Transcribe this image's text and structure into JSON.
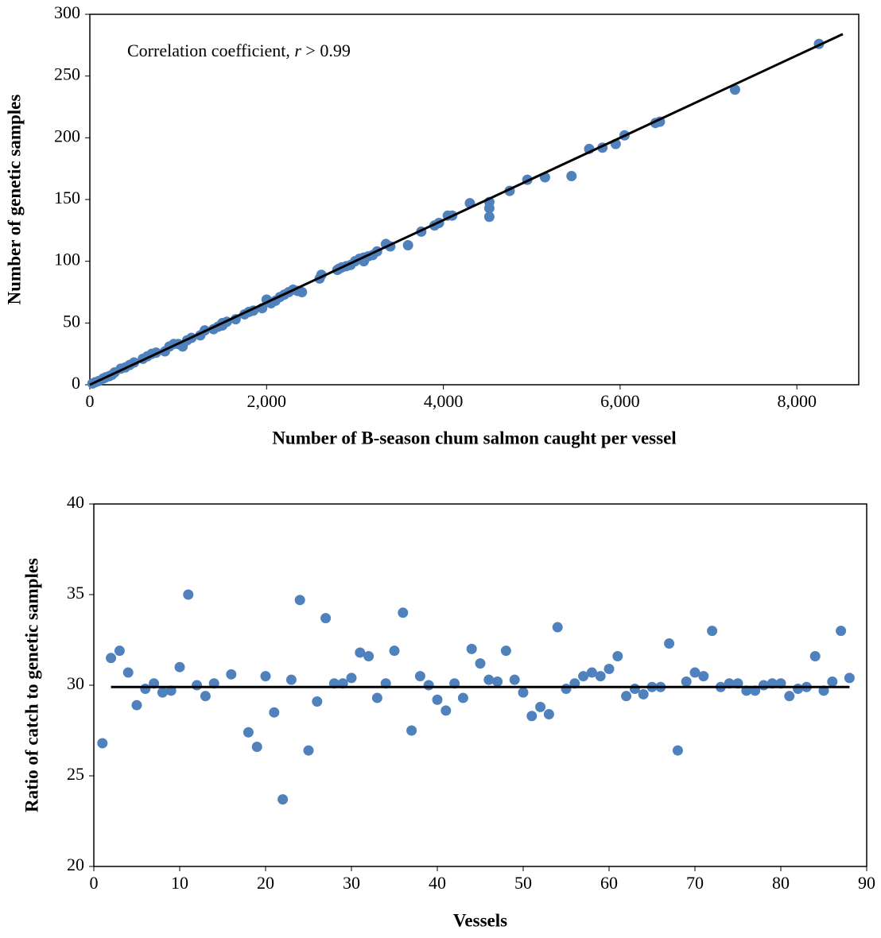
{
  "chart_data": [
    {
      "type": "scatter",
      "annotation": [
        "Correlation coefficient, ",
        "r",
        " > 0.99"
      ],
      "x_label": "Number of B-season chum salmon caught per vessel",
      "y_label": "Number of genetic samples",
      "xlim": [
        0,
        8700
      ],
      "ylim": [
        0,
        300
      ],
      "xticks": [
        0,
        {
          "value": 2000,
          "label": "2,000"
        },
        {
          "value": 4000,
          "label": "4,000"
        },
        {
          "value": 6000,
          "label": "6,000"
        },
        {
          "value": 8000,
          "label": "8,000"
        }
      ],
      "yticks": [
        0,
        50,
        100,
        150,
        200,
        250,
        300
      ],
      "color": "#4f81bd",
      "x": [
        30,
        60,
        100,
        150,
        180,
        220,
        250,
        280,
        350,
        400,
        450,
        500,
        600,
        650,
        700,
        750,
        850,
        900,
        950,
        1050,
        1100,
        1150,
        1250,
        1400,
        1450,
        1500,
        1550,
        1650,
        1750,
        1800,
        1850,
        1950,
        2000,
        2050,
        2100,
        2150,
        2200,
        2250,
        2300,
        2350,
        2400,
        2600,
        2620,
        2800,
        2850,
        2900,
        2950,
        3000,
        3050,
        3100,
        3150,
        3200,
        3250,
        3350,
        3400,
        3600,
        3750,
        3900,
        3950,
        4050,
        4100,
        4300,
        4520,
        4520,
        4520,
        4750,
        4950,
        5150,
        5450,
        5650,
        5800,
        5950,
        6050,
        6400,
        6450,
        7300,
        8250,
        3100,
        2820,
        1000,
        1300,
        1500
      ],
      "y": [
        1,
        2,
        3,
        5,
        6,
        7,
        8,
        10,
        13,
        14,
        16,
        18,
        21,
        23,
        25,
        26,
        27,
        31,
        33,
        31,
        36,
        38,
        40,
        45,
        47,
        50,
        51,
        53,
        57,
        59,
        60,
        62,
        69,
        66,
        68,
        71,
        73,
        75,
        77,
        76,
        75,
        86,
        89,
        93,
        95,
        96,
        97,
        100,
        102,
        103,
        104,
        105,
        108,
        114,
        112,
        113,
        124,
        129,
        131,
        137,
        137,
        147,
        148,
        143,
        136,
        157,
        166,
        168,
        169,
        191,
        192,
        195,
        202,
        212,
        213,
        239,
        276,
        100,
        94,
        33,
        44,
        48
      ],
      "line": {
        "x": [
          0,
          8520
        ],
        "y": [
          0,
          284
        ],
        "color": "#000000"
      }
    },
    {
      "type": "scatter",
      "x_label": "Vessels",
      "y_label": "Ratio of catch to genetic samples",
      "xlim": [
        0,
        90
      ],
      "ylim": [
        20,
        40
      ],
      "xticks": [
        0,
        10,
        20,
        30,
        40,
        50,
        60,
        70,
        80,
        90
      ],
      "yticks": [
        20,
        25,
        30,
        35,
        40
      ],
      "color": "#4f81bd",
      "x": [
        1,
        2,
        3,
        4,
        5,
        6,
        7,
        8,
        9,
        10,
        11,
        12,
        13,
        14,
        16,
        18,
        19,
        20,
        21,
        22,
        23,
        24,
        25,
        26,
        27,
        28,
        29,
        30,
        31,
        32,
        33,
        34,
        35,
        36,
        37,
        38,
        39,
        40,
        41,
        42,
        43,
        44,
        45,
        46,
        47,
        48,
        49,
        50,
        51,
        52,
        53,
        54,
        55,
        56,
        57,
        58,
        59,
        60,
        61,
        62,
        63,
        64,
        65,
        66,
        67,
        68,
        69,
        70,
        71,
        72,
        73,
        74,
        75,
        76,
        77,
        78,
        79,
        80,
        81,
        82,
        83,
        84,
        85,
        86,
        87,
        88
      ],
      "y": [
        26.8,
        31.5,
        31.9,
        30.7,
        28.9,
        29.8,
        30.1,
        29.6,
        29.7,
        31.0,
        35.0,
        30.0,
        29.4,
        30.1,
        30.6,
        27.4,
        26.6,
        30.5,
        28.5,
        23.7,
        30.3,
        34.7,
        26.4,
        29.1,
        33.7,
        30.1,
        30.1,
        30.4,
        31.8,
        31.6,
        29.3,
        30.1,
        31.9,
        34.0,
        27.5,
        30.5,
        30.0,
        29.2,
        28.6,
        30.1,
        29.3,
        32.0,
        31.2,
        30.3,
        30.2,
        31.9,
        30.3,
        29.6,
        28.3,
        28.8,
        28.4,
        33.2,
        29.8,
        30.1,
        30.5,
        30.7,
        30.5,
        30.9,
        31.6,
        29.4,
        29.8,
        29.5,
        29.9,
        29.9,
        32.3,
        26.4,
        30.2,
        30.7,
        30.5,
        33.0,
        29.9,
        30.1,
        30.1,
        29.7,
        29.7,
        30.0,
        30.1,
        30.1,
        29.4,
        29.8,
        29.9,
        31.6,
        29.7,
        30.2,
        33.0,
        30.4
      ],
      "line": {
        "x": [
          2,
          88
        ],
        "y": [
          29.9,
          29.9
        ],
        "color": "#000000"
      }
    }
  ]
}
